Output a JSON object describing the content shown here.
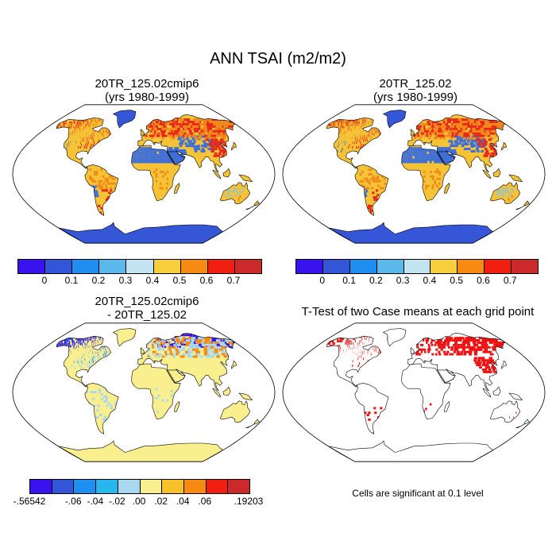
{
  "title": "ANN TSAI (m2/m2)",
  "panels": {
    "top_left": {
      "line1": "20TR_125.02cmip6",
      "line2": "(yrs 1980-1999)"
    },
    "top_right": {
      "line1": "20TR_125.02",
      "line2": "(yrs 1980-1999)"
    },
    "bottom_left": {
      "line1": "20TR_125.02cmip6",
      "line2": "- 20TR_125.02"
    },
    "bottom_right": {
      "line1": "T-Test of two Case means at each grid point"
    }
  },
  "colorbar_abs": {
    "colors": [
      "#3a12f0",
      "#3355d8",
      "#1e8ef0",
      "#5ab8ea",
      "#c2e4f2",
      "#f7cf3a",
      "#f78b12",
      "#f01f10",
      "#cc2a2a"
    ],
    "ticks": [
      "0",
      "0.1",
      "0.2",
      "0.3",
      "0.4",
      "0.5",
      "0.6",
      "0.7"
    ]
  },
  "colorbar_diff": {
    "colors": [
      "#3a12f0",
      "#3355d8",
      "#1e8ef0",
      "#27b7ee",
      "#a8d8f0",
      "#f9ef8e",
      "#f8c12a",
      "#f78b12",
      "#f01f10",
      "#cc2a2a"
    ],
    "ticks": [
      "-.56542",
      "-.06",
      "-.04",
      "-.02",
      ".00",
      ".02",
      ".04",
      ".06",
      ".19203"
    ]
  },
  "ttest_note": "Cells are significant at 0.1 level",
  "map_colors": {
    "ocean": "#ffffff",
    "land_abs": "#f5c335",
    "high": "#e8281a",
    "mid": "#f08a1a",
    "low_blue": "#3f6fd8",
    "antarctica": "#3556d6",
    "diff_land": "#f9ef8e",
    "diff_neg": "#3a12f0",
    "diff_light": "#a8d8f0",
    "sig": "#ee1111",
    "coast": "#000000"
  }
}
